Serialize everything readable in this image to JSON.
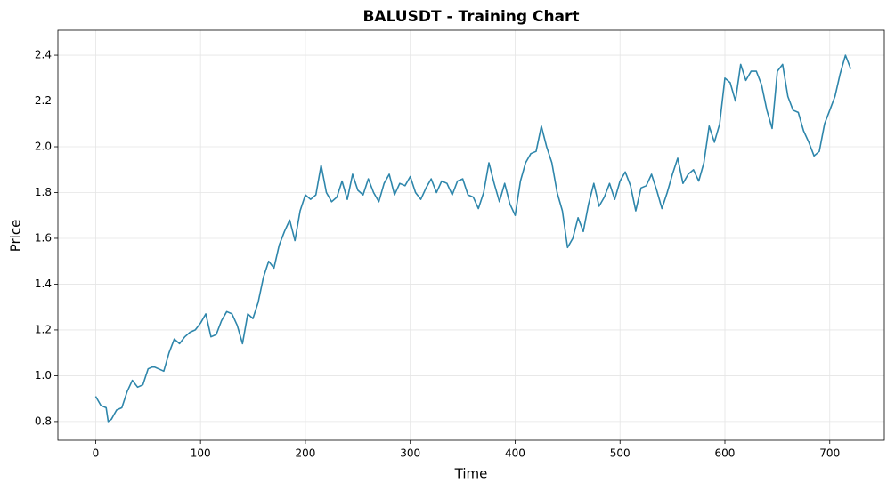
{
  "chart_data": {
    "type": "line",
    "title": "BALUSDT - Training Chart",
    "x_label": "Time",
    "y_label": "Price",
    "x": [
      0,
      5,
      10,
      12,
      15,
      20,
      25,
      30,
      35,
      40,
      45,
      50,
      55,
      60,
      65,
      70,
      75,
      80,
      85,
      90,
      95,
      100,
      105,
      110,
      115,
      120,
      125,
      130,
      135,
      140,
      145,
      150,
      155,
      160,
      165,
      170,
      175,
      180,
      185,
      190,
      195,
      200,
      205,
      210,
      215,
      220,
      225,
      230,
      235,
      240,
      245,
      250,
      255,
      260,
      265,
      270,
      275,
      280,
      285,
      290,
      295,
      300,
      305,
      310,
      315,
      320,
      325,
      330,
      335,
      340,
      345,
      350,
      355,
      360,
      365,
      370,
      375,
      380,
      385,
      390,
      395,
      400,
      405,
      410,
      415,
      420,
      425,
      430,
      435,
      440,
      445,
      450,
      455,
      460,
      465,
      470,
      475,
      480,
      485,
      490,
      495,
      500,
      505,
      510,
      515,
      520,
      525,
      530,
      535,
      540,
      545,
      550,
      555,
      560,
      565,
      570,
      575,
      580,
      585,
      590,
      595,
      600,
      605,
      610,
      615,
      620,
      625,
      630,
      635,
      640,
      645,
      650,
      655,
      660,
      665,
      670,
      675,
      680,
      685,
      690,
      695,
      700,
      705,
      710,
      715,
      720
    ],
    "series": [
      {
        "name": "BALUSDT",
        "color": "#2e86ab",
        "values": [
          0.91,
          0.87,
          0.86,
          0.8,
          0.81,
          0.85,
          0.86,
          0.93,
          0.98,
          0.95,
          0.96,
          1.03,
          1.04,
          1.03,
          1.02,
          1.1,
          1.16,
          1.14,
          1.17,
          1.19,
          1.2,
          1.23,
          1.27,
          1.17,
          1.18,
          1.24,
          1.28,
          1.27,
          1.22,
          1.14,
          1.27,
          1.25,
          1.32,
          1.43,
          1.5,
          1.47,
          1.57,
          1.63,
          1.68,
          1.59,
          1.72,
          1.79,
          1.77,
          1.79,
          1.92,
          1.8,
          1.76,
          1.78,
          1.85,
          1.77,
          1.88,
          1.81,
          1.79,
          1.86,
          1.8,
          1.76,
          1.84,
          1.88,
          1.79,
          1.84,
          1.83,
          1.87,
          1.8,
          1.77,
          1.82,
          1.86,
          1.8,
          1.85,
          1.84,
          1.79,
          1.85,
          1.86,
          1.79,
          1.78,
          1.73,
          1.8,
          1.93,
          1.84,
          1.76,
          1.84,
          1.75,
          1.7,
          1.85,
          1.93,
          1.97,
          1.98,
          2.09,
          2.0,
          1.93,
          1.8,
          1.72,
          1.56,
          1.6,
          1.69,
          1.63,
          1.75,
          1.84,
          1.74,
          1.78,
          1.84,
          1.77,
          1.85,
          1.89,
          1.83,
          1.72,
          1.82,
          1.83,
          1.88,
          1.81,
          1.73,
          1.8,
          1.88,
          1.95,
          1.84,
          1.88,
          1.9,
          1.85,
          1.93,
          2.09,
          2.02,
          2.1,
          2.3,
          2.28,
          2.2,
          2.36,
          2.29,
          2.33,
          2.33,
          2.27,
          2.16,
          2.08,
          2.33,
          2.36,
          2.22,
          2.16,
          2.15,
          2.07,
          2.02,
          1.96,
          1.98,
          2.1,
          2.16,
          2.22,
          2.32,
          2.4,
          2.34
        ]
      }
    ],
    "xlim": [
      -36,
      752
    ],
    "xticks": [
      0,
      100,
      200,
      300,
      400,
      500,
      600,
      700
    ],
    "ylim": [
      0.718,
      2.509
    ],
    "yticks": [
      {
        "value": 0.8,
        "label": "0.8"
      },
      {
        "value": 1.0,
        "label": "1.0"
      },
      {
        "value": 1.2,
        "label": "1.2"
      },
      {
        "value": 1.4,
        "label": "1.4"
      },
      {
        "value": 1.6,
        "label": "1.6"
      },
      {
        "value": 1.8,
        "label": "1.8"
      },
      {
        "value": 2.0,
        "label": "2.0"
      },
      {
        "value": 2.2,
        "label": "2.2"
      },
      {
        "value": 2.4,
        "label": "2.4"
      }
    ],
    "grid": true
  }
}
